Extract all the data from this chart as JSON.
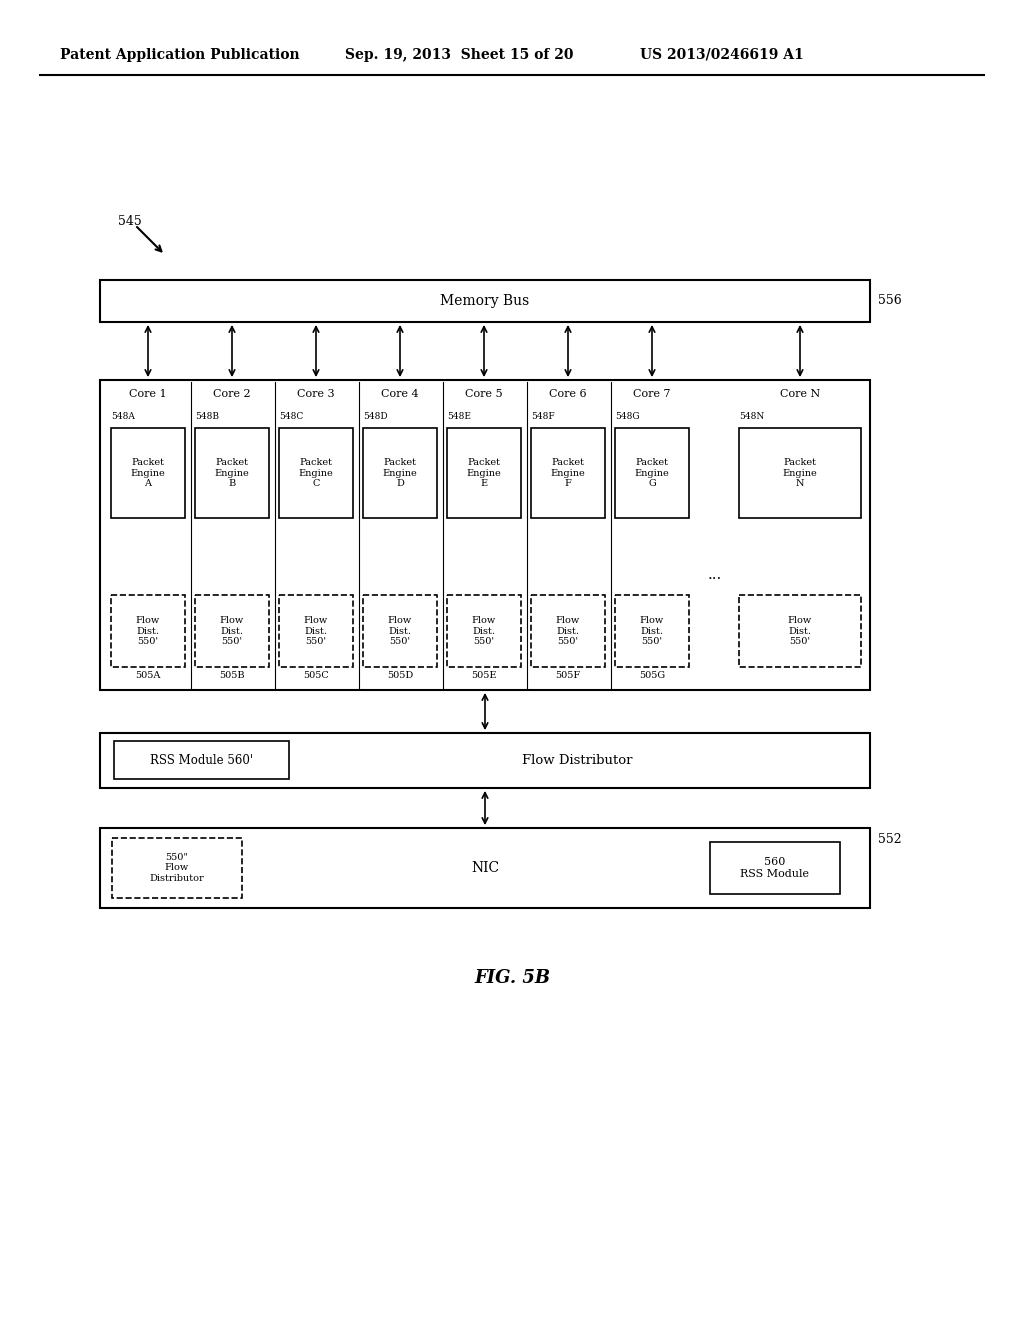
{
  "bg_color": "#ffffff",
  "header_text": "Patent Application Publication",
  "header_date": "Sep. 19, 2013  Sheet 15 of 20",
  "header_patent": "US 2013/0246619 A1",
  "fig_label": "FIG. 5B",
  "label_545": "545",
  "label_556": "556",
  "label_552": "552",
  "memory_bus_text": "Memory Bus",
  "cores": [
    "Core 1",
    "Core 2",
    "Core 3",
    "Core 4",
    "Core 5",
    "Core 6",
    "Core 7",
    "Core N"
  ],
  "packet_engine_labels": [
    "548A",
    "548B",
    "548C",
    "548D",
    "548E",
    "548F",
    "548G",
    "548N"
  ],
  "packet_engine_texts": [
    "Packet\nEngine\nA",
    "Packet\nEngine\nB",
    "Packet\nEngine\nC",
    "Packet\nEngine\nD",
    "Packet\nEngine\nE",
    "Packet\nEngine\nF",
    "Packet\nEngine\nG",
    "Packet\nEngine\nN"
  ],
  "flow_dist_labels": [
    "505A",
    "505B",
    "505C",
    "505D",
    "505E",
    "505F",
    "505G"
  ],
  "flow_dist_text": "Flow\nDist.\n550'",
  "rss_flow_box_text": "RSS Module 560'",
  "flow_distributor_text": "Flow Distributor",
  "nic_text": "NIC",
  "nic_rss_text": "560\nRSS Module",
  "nic_flow_dist_text": "550\"\nFlow\nDistributor"
}
